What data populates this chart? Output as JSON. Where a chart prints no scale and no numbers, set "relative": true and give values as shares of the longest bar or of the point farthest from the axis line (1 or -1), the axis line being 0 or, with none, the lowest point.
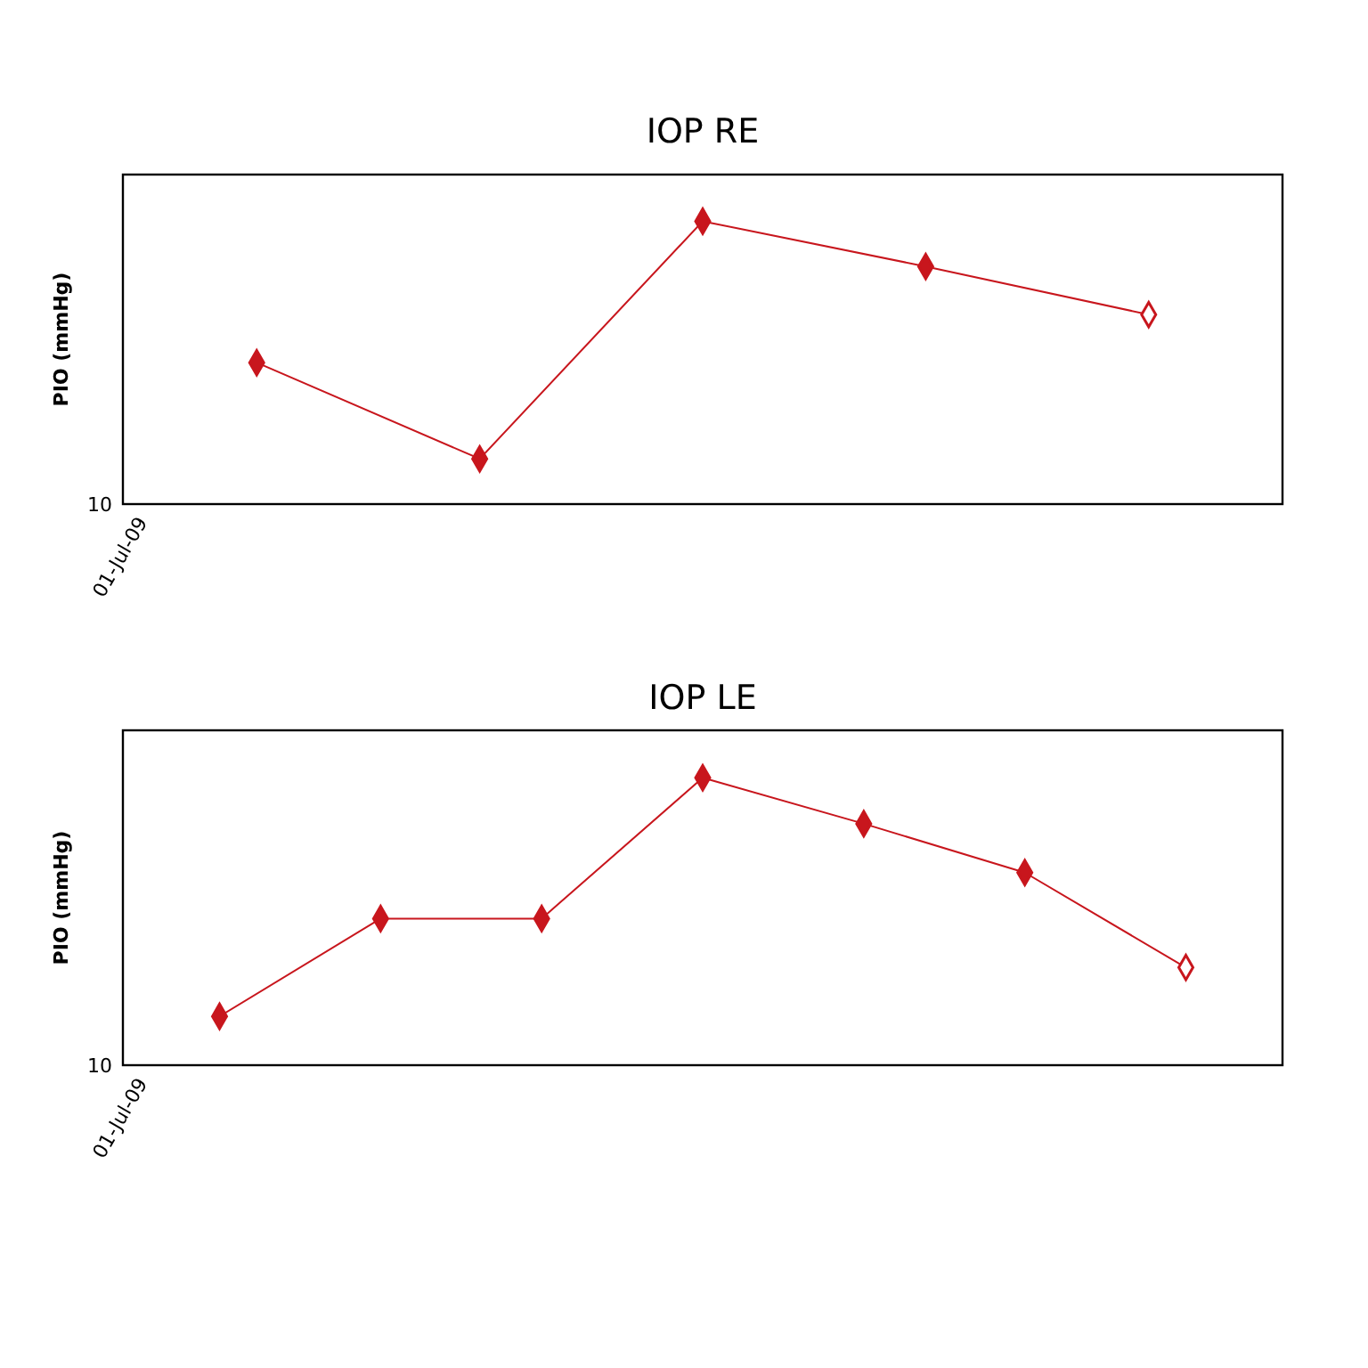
{
  "chart_data": [
    {
      "type": "line",
      "title": "IOP RE",
      "ylabel": "PIO (mmHg)",
      "relative": true,
      "marker": "diamond",
      "annotations": [
        "10",
        "01-Jul-09"
      ],
      "categories": [
        null,
        null,
        null,
        null,
        null
      ],
      "series": [
        {
          "color": "#c8161d",
          "values": [
            0.5,
            0.16,
            1.0,
            0.84,
            0.67
          ],
          "colors": [
            "#c8161d",
            "#c8161d",
            "#c8161d",
            "#c8161d",
            "#ffffff"
          ]
        }
      ]
    },
    {
      "type": "line",
      "title": "IOP LE",
      "ylabel": "PIO (mmHg)",
      "relative": true,
      "marker": "diamond",
      "annotations": [
        "10",
        "01-Jul-09"
      ],
      "categories": [
        null,
        null,
        null,
        null,
        null,
        null,
        null
      ],
      "series": [
        {
          "color": "#c8161d",
          "values": [
            0.17,
            0.51,
            0.51,
            1.0,
            0.84,
            0.67,
            0.34
          ],
          "colors": [
            "#c8161d",
            "#c8161d",
            "#c8161d",
            "#c8161d",
            "#c8161d",
            "#c8161d",
            "#ffffff"
          ]
        }
      ]
    }
  ]
}
